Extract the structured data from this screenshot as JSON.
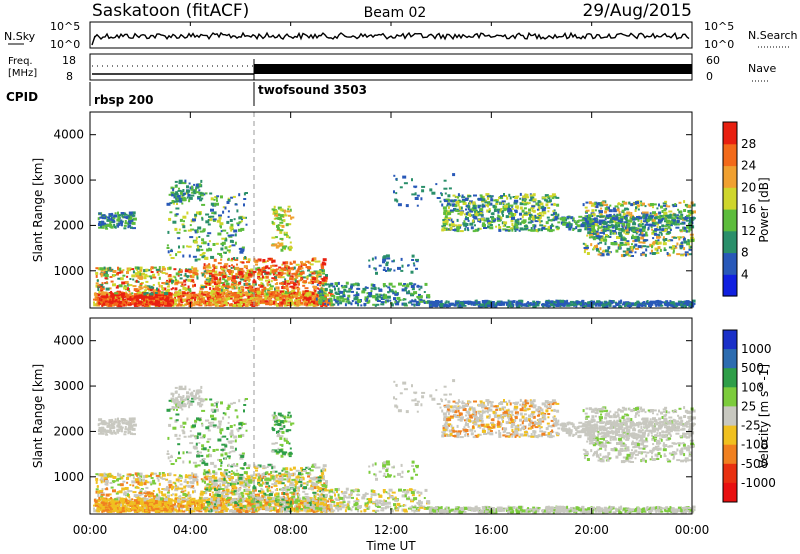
{
  "header": {
    "station": "Saskatoon (fitACF)",
    "beam": "Beam 02",
    "date": "29/Aug/2015"
  },
  "noise_panel": {
    "left_label": "N.Sky",
    "right_label": "N.Search",
    "left_ticks": [
      "10^5",
      "10^0"
    ],
    "right_ticks": [
      "10^5",
      "10^0"
    ]
  },
  "freq_panel": {
    "left_label_1": "Freq.",
    "left_label_2": "[MHz]",
    "right_label": "Nave",
    "left_ticks": [
      "18",
      "8"
    ],
    "right_ticks": [
      "60",
      "0"
    ]
  },
  "cpid": {
    "label": "CPID",
    "modes": [
      {
        "name": "rbsp 200",
        "start_hour": 0
      },
      {
        "name": "twofsound 3503",
        "start_hour": 6.5
      }
    ]
  },
  "axes": {
    "ylabel": "Slant Range [km]",
    "xlabel": "Time UT",
    "y_ticks": [
      "1000",
      "2000",
      "3000",
      "4000"
    ],
    "x_ticks": [
      "00:00",
      "04:00",
      "08:00",
      "12:00",
      "16:00",
      "20:00",
      "00:00"
    ]
  },
  "chart_data": [
    {
      "type": "heatmap",
      "quantity": "Power",
      "x_range_hours": [
        0,
        24
      ],
      "ylim": [
        180,
        4500
      ],
      "colorbar": {
        "label": "Power [dB]",
        "ticks": [
          "4",
          "8",
          "12",
          "16",
          "20",
          "24",
          "28"
        ],
        "colors": [
          "#1020e0",
          "#2858b8",
          "#2a8f6a",
          "#5cbc3c",
          "#cfd62c",
          "#f0a030",
          "#f36a1a",
          "#e82010"
        ]
      }
    },
    {
      "type": "heatmap",
      "quantity": "Velocity",
      "x_range_hours": [
        0,
        24
      ],
      "ylim": [
        180,
        4500
      ],
      "colorbar": {
        "label": "Velocity [m s^-1]",
        "ticks": [
          "1000",
          "500",
          "100",
          "25",
          "-25",
          "-100",
          "-500",
          "-1000"
        ],
        "colors": [
          "#1a30c8",
          "#2c6cb0",
          "#2e9e48",
          "#7ccc3c",
          "#c8c8c0",
          "#f0c020",
          "#f08020",
          "#e83010",
          "#e81010"
        ]
      }
    }
  ]
}
